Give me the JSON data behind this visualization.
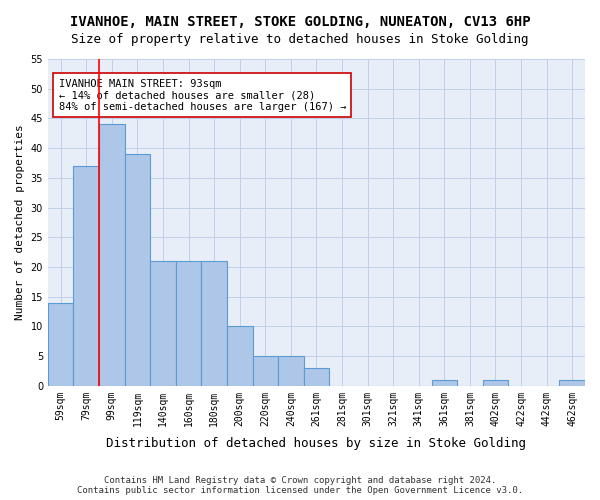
{
  "title": "IVANHOE, MAIN STREET, STOKE GOLDING, NUNEATON, CV13 6HP",
  "subtitle": "Size of property relative to detached houses in Stoke Golding",
  "xlabel": "Distribution of detached houses by size in Stoke Golding",
  "ylabel": "Number of detached properties",
  "bar_values": [
    14,
    37,
    44,
    39,
    21,
    21,
    21,
    10,
    5,
    5,
    3,
    0,
    0,
    0,
    0,
    1,
    0,
    1,
    0,
    0,
    1
  ],
  "categories": [
    "59sqm",
    "79sqm",
    "99sqm",
    "119sqm",
    "140sqm",
    "160sqm",
    "180sqm",
    "200sqm",
    "220sqm",
    "240sqm",
    "261sqm",
    "281sqm",
    "301sqm",
    "321sqm",
    "341sqm",
    "361sqm",
    "381sqm",
    "402sqm",
    "422sqm",
    "442sqm",
    "462sqm"
  ],
  "bar_color": "#aec6e8",
  "bar_edge_color": "#5b9bd5",
  "grid_color": "#c0d0e8",
  "background_color": "#e8eef8",
  "annotation_box_color": "#ffffff",
  "annotation_border_color": "#cc0000",
  "annotation_text": "IVANHOE MAIN STREET: 93sqm\n← 14% of detached houses are smaller (28)\n84% of semi-detached houses are larger (167) →",
  "property_line_x": 1.5,
  "ylim": [
    0,
    55
  ],
  "yticks": [
    0,
    5,
    10,
    15,
    20,
    25,
    30,
    35,
    40,
    45,
    50,
    55
  ],
  "footer_line1": "Contains HM Land Registry data © Crown copyright and database right 2024.",
  "footer_line2": "Contains public sector information licensed under the Open Government Licence v3.0.",
  "title_fontsize": 10,
  "subtitle_fontsize": 9,
  "xlabel_fontsize": 9,
  "ylabel_fontsize": 8,
  "tick_fontsize": 7,
  "annotation_fontsize": 7.5,
  "footer_fontsize": 6.5
}
